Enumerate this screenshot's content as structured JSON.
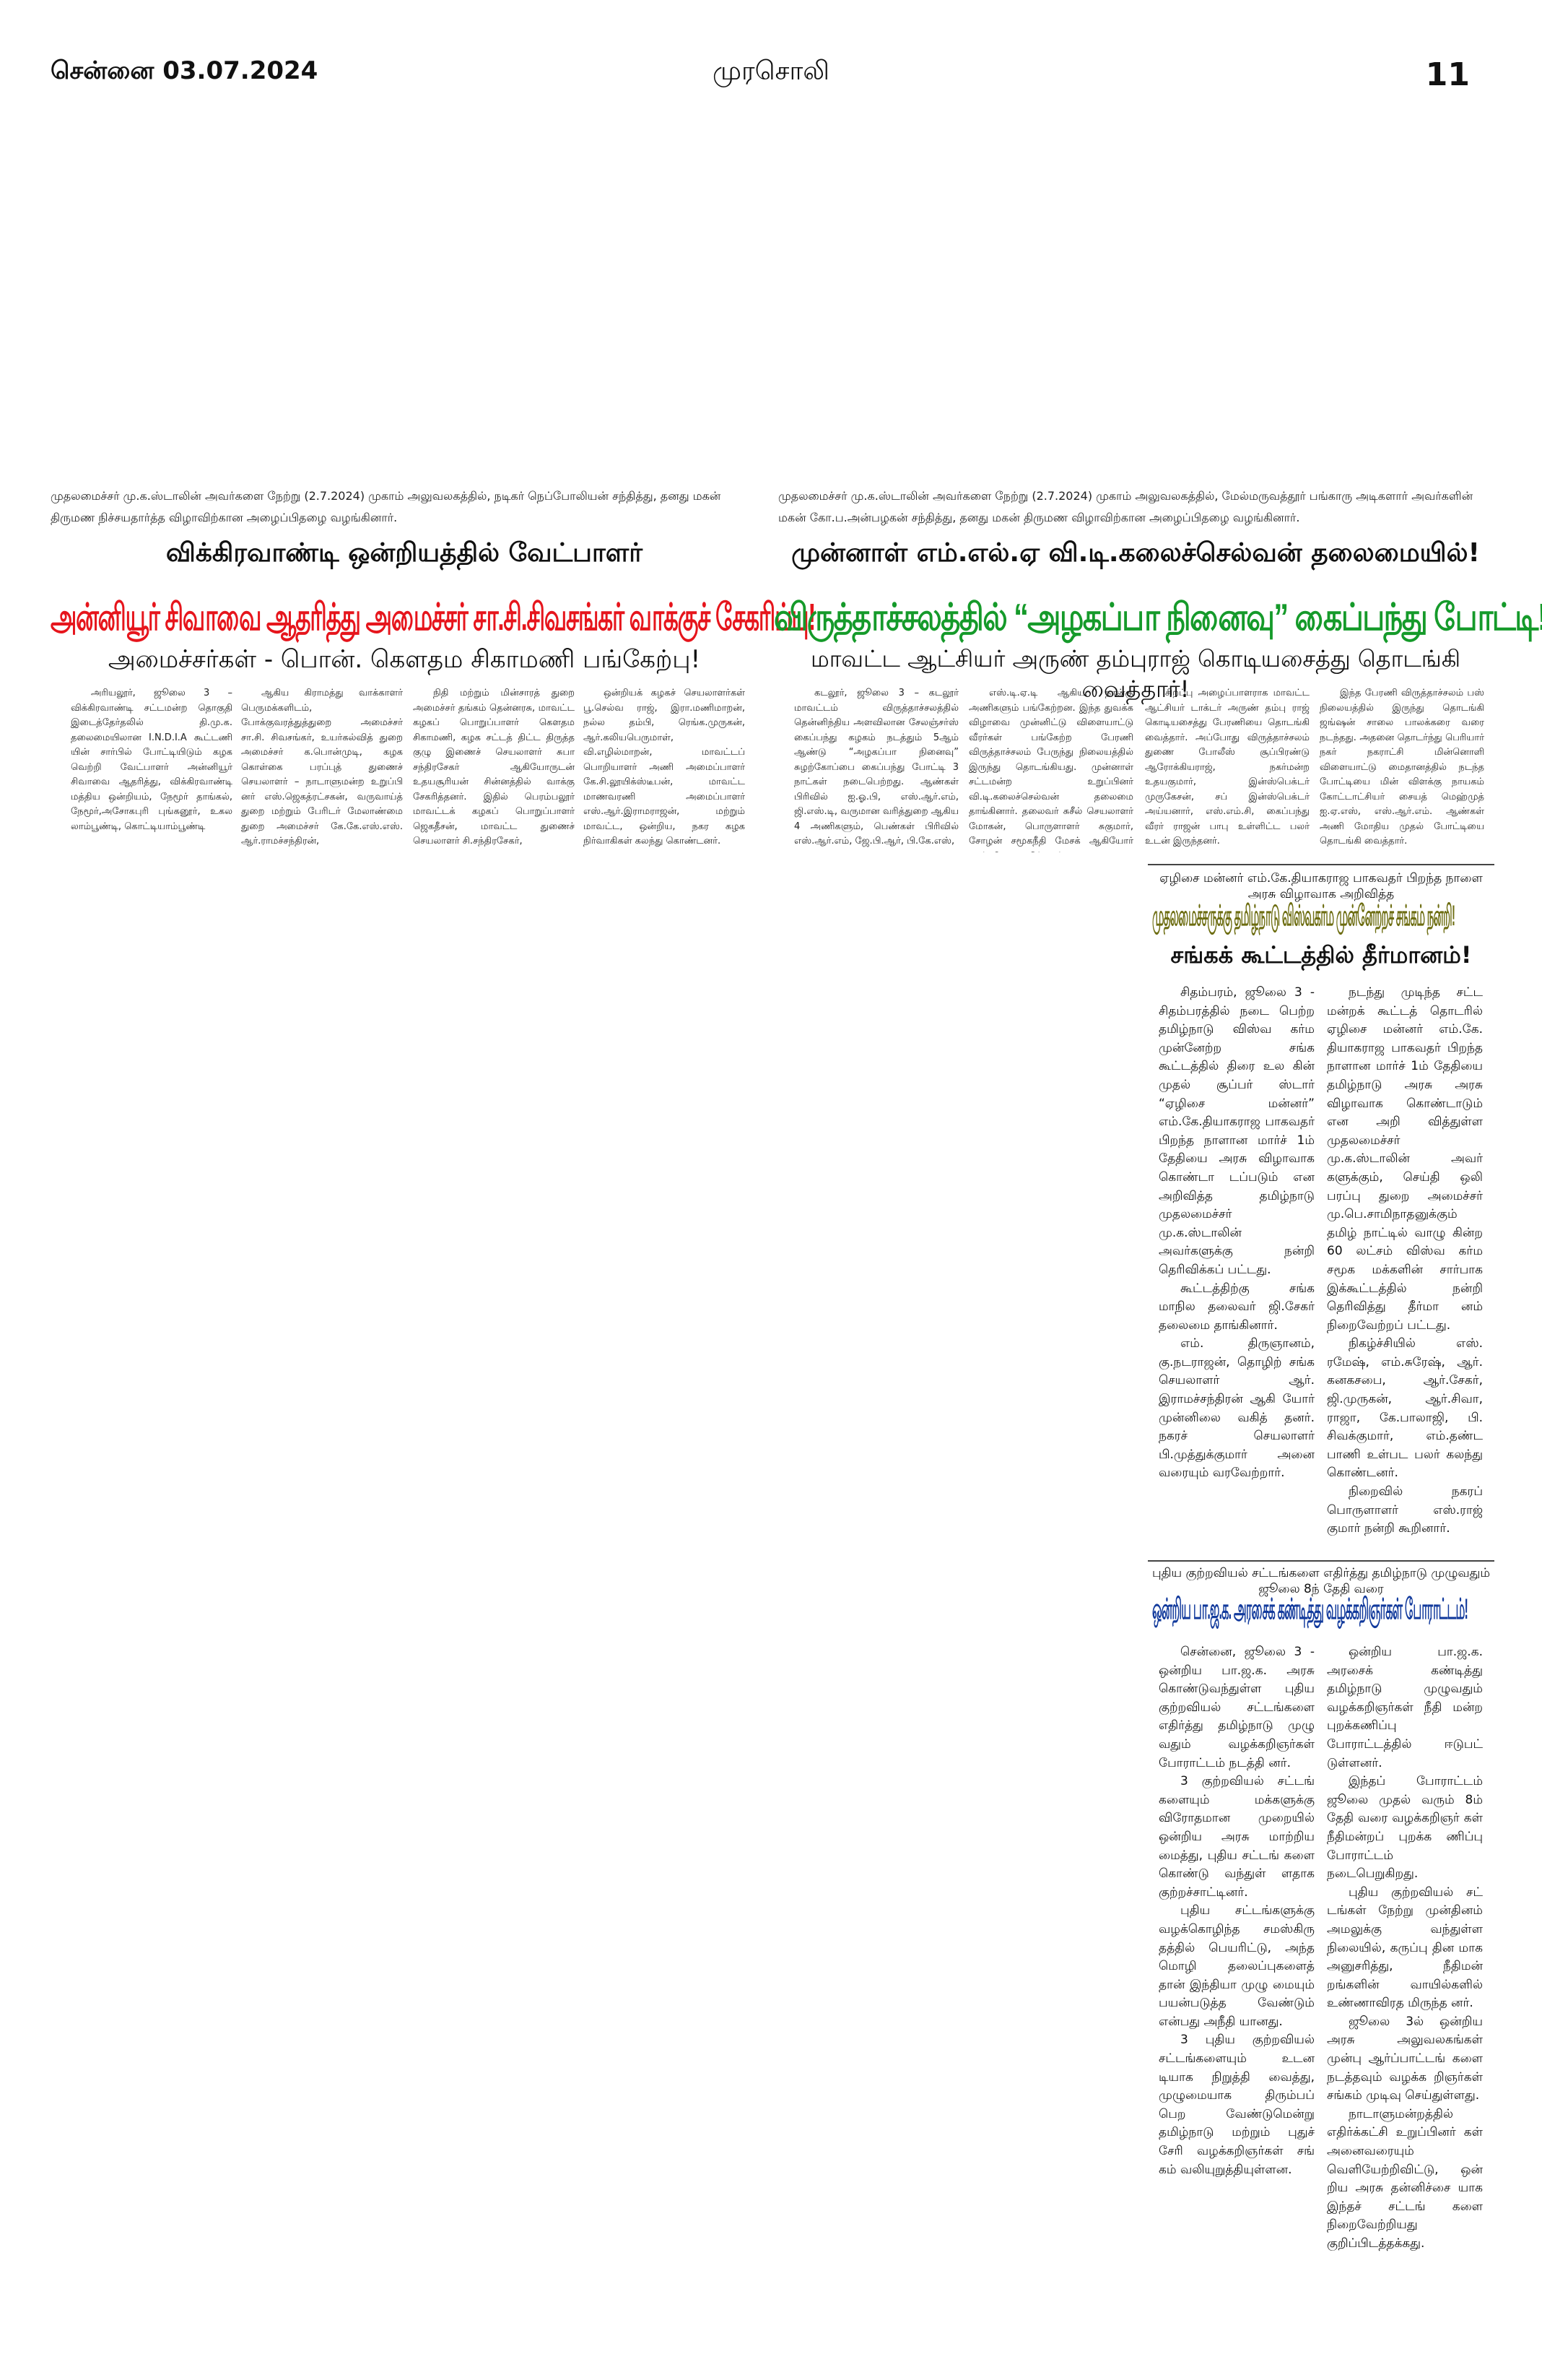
{
  "masthead": {
    "city_date": "சென்னை 03.07.2024",
    "paper": "முரசொலி",
    "page_number": "11"
  },
  "left_story": {
    "caption": "முதலமைச்சர் மு.க.ஸ்டாலின் அவர்களை நேற்று (2.7.2024) முகாம் அலுவலகத்தில், நடிகர் நெப்போலியன் சந்தித்து, தனது மகன் திருமண நிச்சயதார்த்த விழாவிற்கான அழைப்பிதழை வழங்கினார்.",
    "kicker": "விக்கிரவாண்டி ஒன்றியத்தில் வேட்பாளர்",
    "headline": "அன்னியூர் சிவாவை ஆதரித்து அமைச்சர் சா.சி.சிவசங்கர் வாக்குச் சேகரிப்பு!",
    "subhead": "அமைச்சர்கள் - பொன். கௌதம சிகாமணி பங்கேற்பு!",
    "columns": [
      "அரியலூர், ஜூலை 3 – விக்கிரவாண்டி சட்டமன்ற தொகுதி இடைத்தேர்தலில் தி.மு.க. தலைமையிலான I.N.D.I.A கூட்டணி யின் சார்பில் போட்டியிடும் கழக வெற்றி வேட்பாளர் அன்னியூர் சிவாவை ஆதரித்து, விக்கிரவாண்டி மத்திய ஒன்றியம், நேமூர் தாங்கல், நேமூர்,அசோகபுரி புங்கனூர், உகல லாம்பூண்டி, கொட்டியாம்பூண்டி",
      "ஆகிய கிராமத்து வாக்காளர் பெருமக்களிடம், போக்குவரத்துத்துறை அமைச்சர் சா.சி. சிவசங்கர், உயர்கல்வித் துறை அமைச்சர் க.பொன்முடி, கழக கொள்கை பரப்புத் துணைச் செயலாளர் – நாடாளுமன்ற உறுப்பி னர் எஸ்.ஜெகத்ரட்சகன், வருவாய்த் துறை மற்றும் பேரிடர் மேலாண்மை துறை அமைச்சர் கே.கே.எஸ்.எஸ். ஆர்.ராமச்சந்திரன்,",
      "நிதி மற்றும் மின்சாரத் துறை அமைச்சர் தங்கம் தென்னரசு, மாவட்ட கழகப் பொறுப்பாளர் கௌதம சிகாமணி, கழக சட்டத் திட்ட திருத்த குழு இணைச் செயலாளர் சுபா சந்திரசேகர் ஆகியோருடன் உதயசூரியன் சின்னத்தில் வாக்கு சேகரித்தனர். இதில் பெரம்பலூர் மாவட்டக் கழகப் பொறுப்பாளர் ஜெகதீசன், மாவட்ட துணைச் செயலாளர் சி.சந்திரசேகர்,",
      "ஒன்றியக் கழகச் செயலாளர்கள் பூ.செல்வ ராஜ், இரா.மணிமாறன், நல்ல தம்பி, ரெங்க.முருகன், ஆர்.கலியபெருமாள், வி.எழில்மாறன், மாவட்டப் பொறியாளர் அணி அமைப்பாளர் கே.சி.லூயிக்ஸ்டீபன், மாவட்ட மாணவரணி அமைப்பாளர் எஸ்.ஆர்.இராமராஜன், மற்றும் மாவட்ட, ஒன்றிய, நகர கழக நிர்வாகிகள் கலந்து கொண்டனர்."
    ]
  },
  "right_story": {
    "caption": "முதலமைச்சர் மு.க.ஸ்டாலின் அவர்களை நேற்று (2.7.2024) முகாம் அலுவலகத்தில், மேல்மருவத்தூர் பங்காரு அடிகளார் அவர்களின் மகன் கோ.ப.அன்பழகன் சந்தித்து, தனது மகன் திருமண விழாவிற்கான அழைப்பிதழை வழங்கினார்.",
    "kicker": "முன்னாள் எம்.எல்.ஏ  வி.டி.கலைச்செல்வன் தலைமையில்!",
    "headline": "விருத்தாச்சலத்தில் “அழகப்பா நினைவு” கைப்பந்து போட்டி!",
    "subhead": "மாவட்ட ஆட்சியர் அருண் தம்புராஜ் கொடியசைத்து தொடங்கி வைத்தார்!",
    "columns": [
      "கடலூர், ஜூலை 3 – கடலூர் மாவட்டம் விருத்தாச்சலத்தில் தென்னிந்திய அளவிலான சேலஞ்சர்ஸ் கைப்பந்து கழகம் நடத்தும் 5ஆம் ஆண்டு “அழகப்பா நினைவு” சுழற்கோப்பை கைப்பந்து போட்டி 3 நாட்கள் நடைபெற்றது. ஆண்கள் பிரிவில் ஐ.ஓ.பி, எஸ்.ஆர்.எம், ஜி.எஸ்.டி, வருமான வரித்துறை ஆகிய 4 அணிகளும், பெண்கள் பிரிவில் எஸ்.ஆர்.எம், ஜே.பி.ஆர், பி.கே.எஸ்,",
      "எஸ்.டி.ஏ.டி ஆகிய நான்கு அணிகளும் பங்கேற்றன. இந்த துவக்க விழாவை முன்னிட்டு விளையாட்டு வீரர்கள் பங்கேற்ற பேரணி விருத்தாச்சலம் பேருந்து நிலையத்தில் இருந்து தொடங்கியது. முன்னாள் சட்டமன்ற உறுப்பினர் வி.டி.கலைச்செல்வன் தலைமை தாங்கினார். தலைவர் சுசீல் செயலாளர் மோகன், பொருளாளர் சுகுமார், சோழன் சமூகநீதி மேசக் ஆகியோர் முன்னிலை வகித்தனர்.",
      "சிறப்பு அழைப்பாளராக மாவட்ட ஆட்சியர் டாக்டர் அருண் தம்பு ராஜ் கொடியசைத்து பேரணியை தொடங்கி வைத்தார். அப்போது விருத்தாச்சலம் துணை போலீஸ் சூப்பிரண்டு ஆரோக்கியராஜ், நகர்மன்ற உதயகுமார், இன்ஸ்பெக்டர் முருகேசன், சப் இன்ஸ்பெக்டர் அய்யனார், எஸ்.எம்.சி, கைப்பந்து வீரர் ராஜன் பாபு உள்ளிட்ட பலர் உடன் இருந்தனர்.",
      "இந்த பேரணி விருத்தாச்சலம் பஸ் நிலையத்தில் இருந்து தொடங்கி ஜங்ஷன் சாலை பாலக்கரை வரை நடந்தது. அதனை தொடர்ந்து பெரியார் நகர் நகராட்சி மின்னொளி விளையாட்டு மைதானத்தில் நடந்த போட்டியை மின் விளக்கு நாயகம் கோட்டாட்சியர் சையத் மெஹ்முத் ஐ.ஏ.எஸ், எஸ்.ஆர்.எம். ஆண்கள் அணி மோதிய முதல் போட்டியை தொடங்கி வைத்தார்."
    ]
  },
  "sangam_story": {
    "kicker": "ஏழிசை மன்னர் எம்.கே.தியாகராஜ பாகவதர் பிறந்த நாளை அரசு விழாவாக அறிவித்த",
    "headline": "முதலமைச்சருக்கு தமிழ்நாடு விஸ்வகர்ம முன்னேற்றச் சங்கம் நன்றி!",
    "subhead": "சங்கக் கூட்டத்தில் தீர்மானம்!",
    "columns": [
      "சிதம்பரம், ஜூலை 3 - சிதம்பரத்தில் நடை பெற்ற தமிழ்நாடு விஸ்வ கர்ம முன்னேற்ற சங்க கூட்டத்தில் திரை உல கின் முதல் சூப்பர் ஸ்டார் “ஏழிசை மன்னர்” எம்.கே.தியாகராஜ பாகவதர் பிறந்த நாளான மார்ச் 1ம் தேதியை அரசு விழாவாக கொண்டா டப்படும் என அறிவித்த தமிழ்நாடு முதலமைச்சர் மு.க.ஸ்டாலின் அவர்களுக்கு நன்றி தெரிவிக்கப் பட்டது.",
      "கூட்டத்திற்கு சங்க மாநில தலைவர் ஜி.சேகர் தலைமை தாங்கினார்.",
      "எம். திருஞானம், கு.நடராஜன், தொழிற் சங்க செயலாளர் ஆர். இராமச்சந்திரன் ஆகி யோர் முன்னிலை வகித் தனர். நகரச் செயலாளர் பி.முத்துக்குமார் அனை வரையும் வரவேற்றார்.",
      "நடந்து முடிந்த சட்ட மன்றக் கூட்டத் தொடரில் ஏழிசை மன்னர் எம்.கே. தியாகராஜ பாகவதர் பிறந்த நாளான மார்ச் 1ம் தேதியை தமிழ்நாடு அரசு அரசு விழாவாக கொண்டாடும் என அறி வித்துள்ள முதலமைச்சர் மு.க.ஸ்டாலின் அவர் களுக்கும், செய்தி ஒலி பரப்பு துறை அமைச்சர் மு.பெ.சாமிநாதனுக்கும் தமிழ் நாட்டில் வாழு கின்ற 60 லட்சம் விஸ்வ கர்ம சமூக மக்களின் சார்பாக இக்கூட்டத்தில் நன்றி தெரிவித்து தீர்மா னம் நிறைவேற்றப் பட்டது.",
      "நிகழ்ச்சியில் எஸ். ரமேஷ், எம்.சுரேஷ், ஆர். கனகசபை, ஆர்.சேகர், ஜி.முருகன், ஆர்.சிவா, ராஜா, கே.பாலாஜி, பி. சிவக்குமார், எம்.தண்ட பாணி உள்பட பலர் கலந்து கொண்டனர்.",
      "நிறைவில் நகரப் பொருளாளர் எஸ்.ராஜ் குமார் நன்றி கூறினார்."
    ]
  },
  "protest_story": {
    "kicker": "புதிய குற்றவியல் சட்டங்களை எதிர்த்து தமிழ்நாடு முழுவதும் ஜூலை 8ந் தேதி வரை",
    "headline": "ஒன்றிய பா.ஜ.க. அரசைக் கண்டித்து வழக்கறிஞர்கள் போராட்டம்!",
    "columns": [
      "சென்னை, ஜூலை 3 - ஒன்றிய பா.ஜ.க. அரசு கொண்டுவந்துள்ள புதிய குற்றவியல் சட்டங்களை எதிர்த்து தமிழ்நாடு முழு வதும் வழக்கறிஞர்கள் போராட்டம் நடத்தி னர்.",
      "3 குற்றவியல் சட்டங் களையும் மக்களுக்கு விரோதமான முறையில் ஒன்றிய அரசு மாற்றிய மைத்து, புதிய சட்டங் களை கொண்டு வந்துள் ளதாக குற்றச்சாட்டினர்.",
      "புதிய சட்டங்களுக்கு வழக்கொழிந்த சமஸ்கிரு தத்தில் பெயரிட்டு, அந்த மொழி தலைப்புகளைத் தான் இந்தியா முழு மையும் பயன்படுத்த வேண்டும் என்பது அநீதி யானது.",
      "3 புதிய குற்றவியல் சட்டங்களையும் உடன டியாக நிறுத்தி வைத்து, முழுமையாக திரும்பப் பெற வேண்டுமென்று தமிழ்நாடு மற்றும் புதுச் சேரி வழக்கறிஞர்கள் சங் கம் வலியுறுத்தியுள்ளன.",
      "ஒன்றிய பா.ஜ.க. அரசைக் கண்டித்து தமிழ்நாடு முழுவதும் வழக்கறிஞர்கள் நீதி மன்ற புறக்கணிப்பு போராட்டத்தில் ஈடுபட் டுள்ளனர்.",
      "இந்தப் போராட்டம் ஜூலை முதல் வரும் 8ம் தேதி வரை வழக்கறிஞர் கள் நீதிமன்றப் புறக்க ணிப்பு போராட்டம் நடைபெறுகிறது.",
      "புதிய குற்றவியல் சட் டங்கள் நேற்று முன்தினம் அமலுக்கு வந்துள்ள நிலையில், கருப்பு தின மாக அனுசரித்து, நீதிமன் றங்களின் வாயில்களில் உண்ணாவிரத மிருந்த னர்.",
      "ஜூலை 3ல் ஒன்றிய அரசு அலுவலகங்கள் முன்பு ஆர்ப்பாட்டங் களை நடத்தவும் வழக்க றிஞர்கள் சங்கம் முடிவு செய்துள்ளது.",
      "நாடாளுமன்றத்தில் எதிர்க்கட்சி உறுப்பினர் கள் அனைவரையும் வெளியேற்றிவிட்டு, ஒன் றிய அரசு தன்னிச்சை யாக இந்தச் சட்டங் களை நிறைவேற்றியது குறிப்பிடத்தக்கது."
    ]
  }
}
